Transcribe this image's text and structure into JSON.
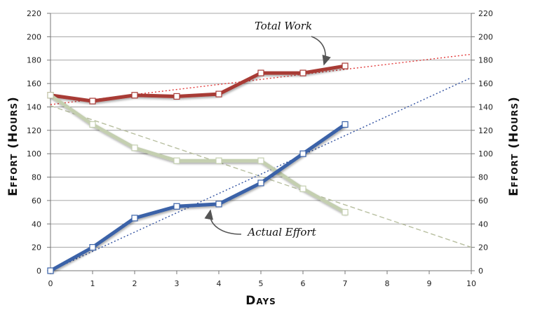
{
  "chart_data": {
    "type": "line",
    "xlabel": "Days",
    "ylabel_left": "Effort (Hours)",
    "ylabel_right": "Effort (Hours)",
    "xlim": [
      0,
      10
    ],
    "ylim": [
      0,
      220
    ],
    "x_ticks": [
      0,
      1,
      2,
      3,
      4,
      5,
      6,
      7,
      8,
      9,
      10
    ],
    "y_ticks": [
      0,
      20,
      40,
      60,
      80,
      100,
      120,
      140,
      160,
      180,
      200,
      220
    ],
    "grid": "horizontal",
    "series": [
      {
        "key": "total",
        "color": "#a83a36",
        "x": [
          0,
          1,
          2,
          3,
          4,
          5,
          6,
          7
        ],
        "y": [
          150,
          145,
          150,
          149,
          151,
          169,
          169,
          175
        ],
        "trendline": {
          "x": [
            0,
            10
          ],
          "y": [
            142,
            185
          ],
          "color": "#e23a3a"
        }
      },
      {
        "key": "remaining",
        "color": "#c4cfb0",
        "x": [
          0,
          1,
          2,
          3,
          4,
          5,
          6,
          7
        ],
        "y": [
          150,
          125,
          105,
          94,
          94,
          94,
          70,
          50
        ],
        "trendline": {
          "x": [
            0,
            10
          ],
          "y": [
            141,
            20
          ],
          "color": "#b8bfa0"
        }
      },
      {
        "key": "actual",
        "color": "#3a62a8",
        "x": [
          0,
          1,
          2,
          3,
          4,
          5,
          6,
          7
        ],
        "y": [
          0,
          20,
          45,
          55,
          57,
          75,
          100,
          125
        ],
        "trendline": {
          "x": [
            0,
            10
          ],
          "y": [
            0,
            165
          ],
          "color": "#3050a0"
        }
      }
    ],
    "annotations": [
      {
        "text": "Total Work",
        "target_series": "total",
        "target_x": 6.5,
        "target_y": 172
      },
      {
        "text": "Actual Effort",
        "target_series": "actual",
        "target_x": 3.8,
        "target_y": 57
      }
    ]
  }
}
